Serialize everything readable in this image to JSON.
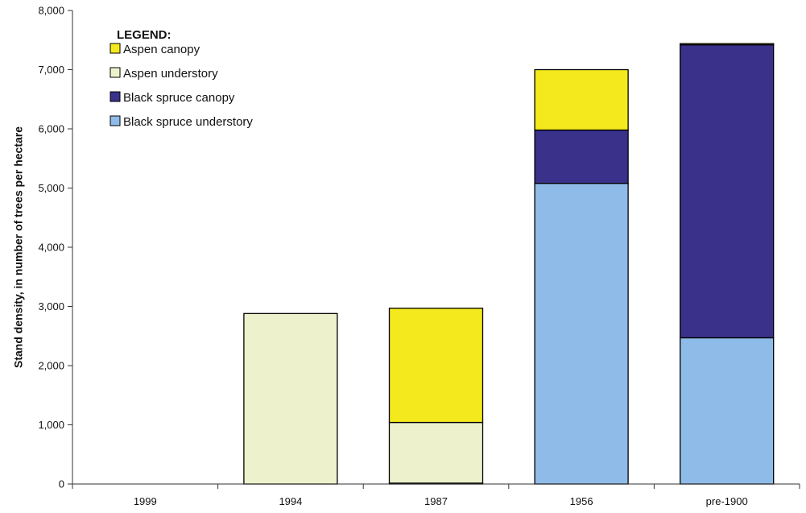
{
  "chart_data": {
    "type": "bar",
    "stacked": true,
    "title": "",
    "xlabel": "",
    "ylabel": "Stand density, in number of trees per hectare",
    "ylim": [
      0,
      8000
    ],
    "ytick_step": 1000,
    "ytick_labels": [
      "0",
      "1,000",
      "2,000",
      "3,000",
      "4,000",
      "5,000",
      "6,000",
      "7,000",
      "8,000"
    ],
    "categories": [
      "1999",
      "1994",
      "1987",
      "1956",
      "pre-1900"
    ],
    "series": [
      {
        "name": "Black spruce understory",
        "color": "#8fbbe8",
        "values": [
          0,
          0,
          15,
          5080,
          2470
        ]
      },
      {
        "name": "Black spruce canopy",
        "color": "#39318a",
        "values": [
          0,
          0,
          0,
          900,
          4950
        ]
      },
      {
        "name": "Aspen understory",
        "color": "#eef2cc",
        "values": [
          0,
          2880,
          1025,
          0,
          0
        ]
      },
      {
        "name": "Aspen canopy",
        "color": "#f3e91c",
        "values": [
          0,
          0,
          1930,
          1020,
          20
        ]
      }
    ],
    "legend": {
      "title": "LEGEND:",
      "position": "top-left",
      "order": [
        "Aspen canopy",
        "Aspen understory",
        "Black spruce canopy",
        "Black spruce understory"
      ]
    },
    "grid": false
  }
}
